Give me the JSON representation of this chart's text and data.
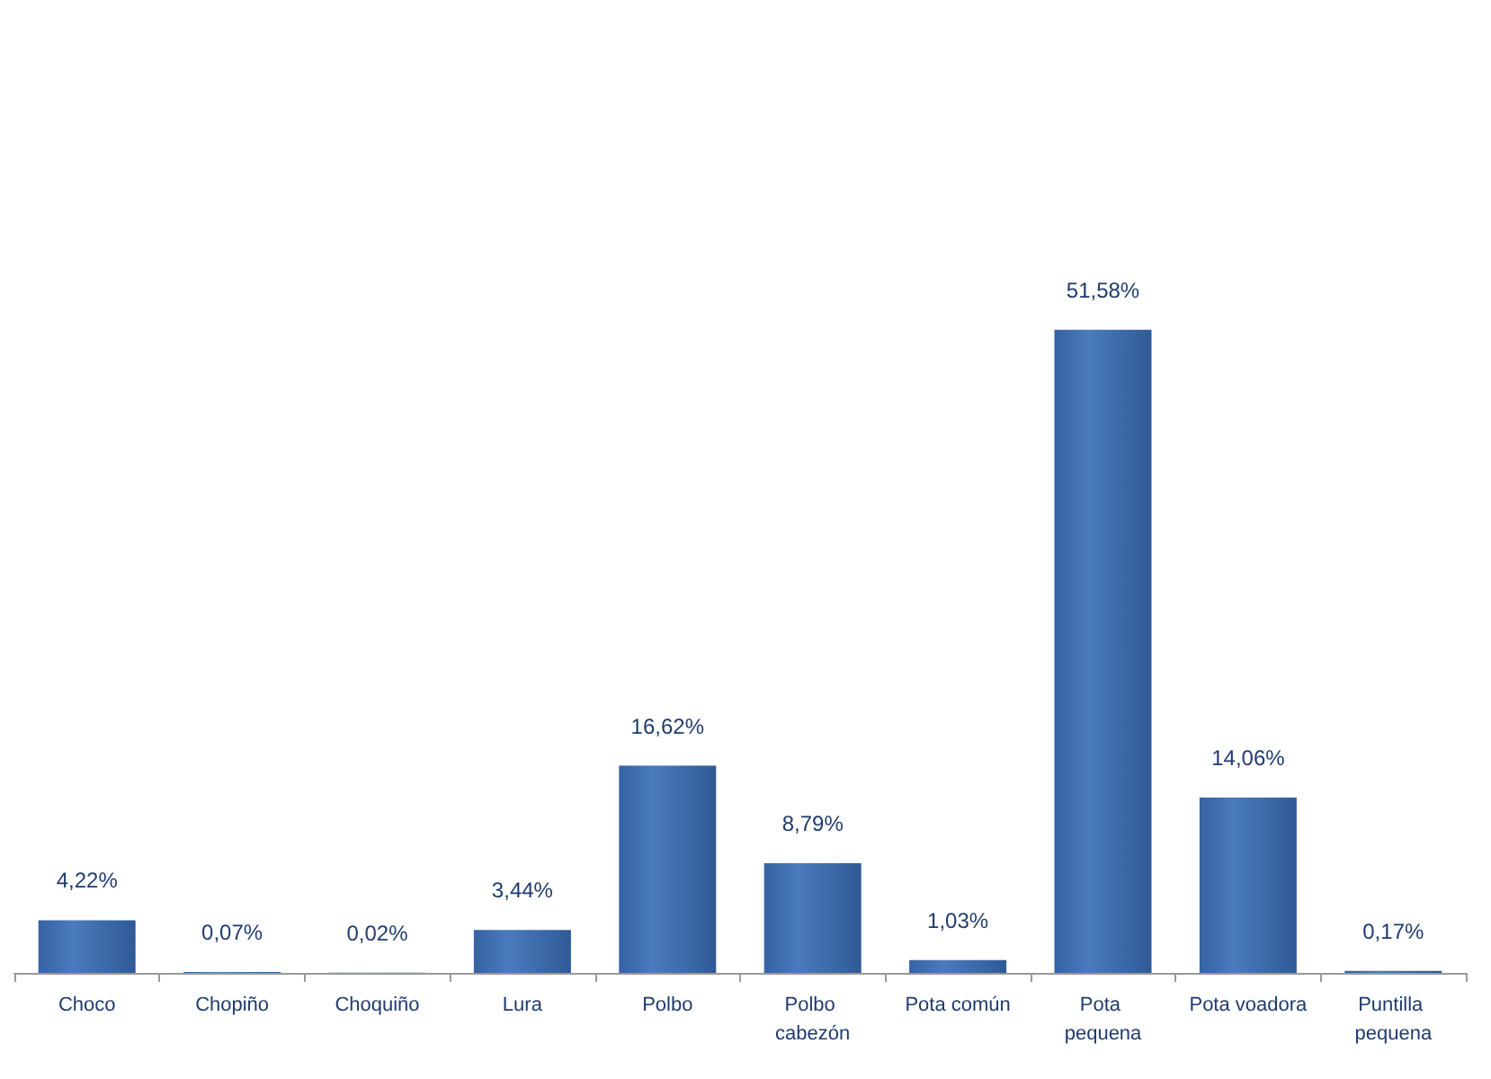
{
  "chart_data": {
    "type": "bar",
    "categories": [
      "Choco",
      "Chopiño",
      "Choquiño",
      "Lura",
      "Polbo",
      "Polbo cabezón",
      "Pota común",
      "Pota pequena",
      "Pota voadora",
      "Puntilla pequena"
    ],
    "values": [
      4.22,
      0.07,
      0.02,
      3.44,
      16.62,
      8.79,
      1.03,
      51.58,
      14.06,
      0.17
    ],
    "value_labels": [
      "4,22%",
      "0,07%",
      "0,02%",
      "3,44%",
      "16,62%",
      "8,79%",
      "1,03%",
      "51,58%",
      "14,06%",
      "0,17%"
    ],
    "color": "#4a7bbd"
  }
}
